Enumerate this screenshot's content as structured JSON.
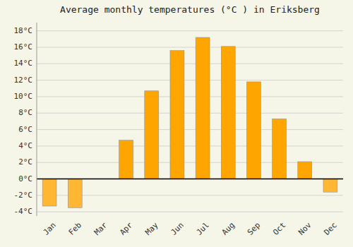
{
  "chart_data": {
    "type": "bar",
    "title": "Average monthly temperatures (°C ) in Eriksberg",
    "categories": [
      "Jan",
      "Feb",
      "Mar",
      "Apr",
      "May",
      "Jun",
      "Jul",
      "Aug",
      "Sep",
      "Oct",
      "Nov",
      "Dec"
    ],
    "values": [
      -3.3,
      -3.5,
      0.0,
      4.7,
      10.7,
      15.6,
      17.2,
      16.1,
      11.8,
      7.3,
      2.1,
      -1.6
    ],
    "colors": [
      "#FFB733",
      "#FFB733",
      "#FFA500",
      "#FFA500",
      "#FFA500",
      "#FFA500",
      "#FFA500",
      "#FFA500",
      "#FFA500",
      "#FFA500",
      "#FFA500",
      "#FFB733"
    ],
    "ylim": [
      -4.5,
      19
    ],
    "yticks": [
      {
        "value": -4,
        "label": "-4°C"
      },
      {
        "value": -2,
        "label": "-2°C"
      },
      {
        "value": 0,
        "label": "0°C"
      },
      {
        "value": 2,
        "label": "2°C"
      },
      {
        "value": 4,
        "label": "4°C"
      },
      {
        "value": 6,
        "label": "6°C"
      },
      {
        "value": 8,
        "label": "8°C"
      },
      {
        "value": 10,
        "label": "10°C"
      },
      {
        "value": 12,
        "label": "12°C"
      },
      {
        "value": 14,
        "label": "14°C"
      },
      {
        "value": 16,
        "label": "16°C"
      },
      {
        "value": 18,
        "label": "18°C"
      }
    ],
    "grid": true
  }
}
